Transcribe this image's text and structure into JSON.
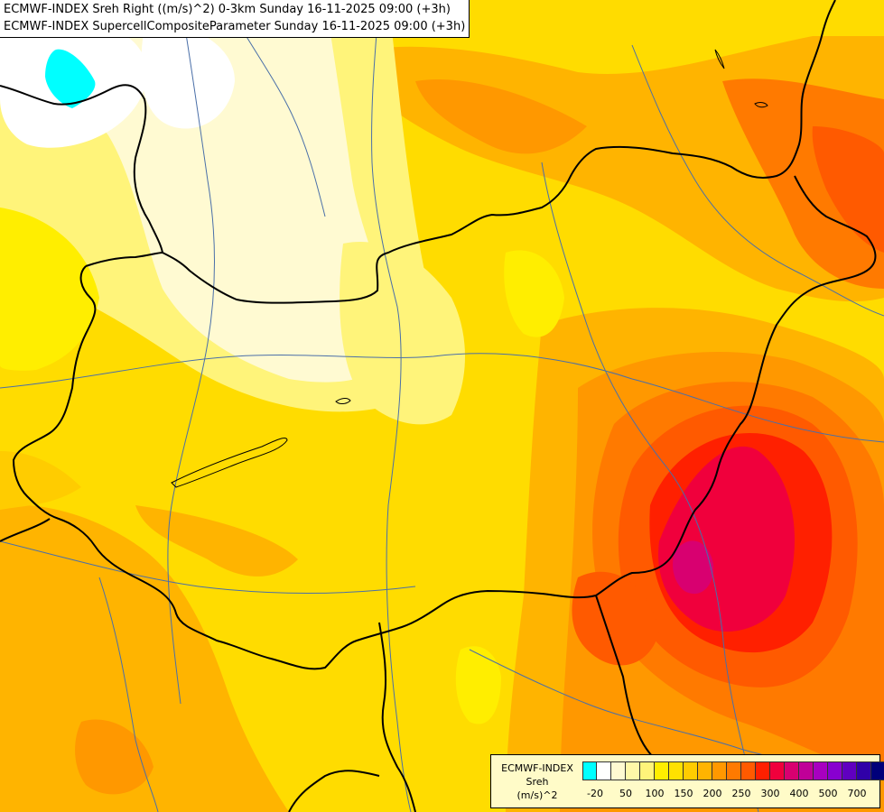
{
  "header": {
    "line1": "ECMWF-INDEX Sreh Right ((m/s)^2) 0-3km Sunday 16-11-2025 09:00 (+3h)",
    "line2": "ECMWF-INDEX SupercellCompositeParameter Sunday 16-11-2025 09:00 (+3h)"
  },
  "legend": {
    "source": "ECMWF-INDEX",
    "parameter": "Sreh",
    "unit": "(m/s)^2",
    "colors": [
      "#00ffff",
      "#ffffff",
      "#fffad2",
      "#fff8a8",
      "#fff47a",
      "#ffee00",
      "#ffe100",
      "#ffcc00",
      "#ffb400",
      "#ff9800",
      "#ff7a00",
      "#ff5a00",
      "#ff2000",
      "#f0003c",
      "#d80070",
      "#c00098",
      "#a800c0",
      "#8800d0",
      "#6000c0",
      "#3000a8",
      "#00007a"
    ],
    "tick_labels": [
      "-20",
      "50",
      "100",
      "150",
      "200",
      "250",
      "300",
      "400",
      "500",
      "700"
    ]
  },
  "palette": {
    "cyan": "#00ffff",
    "white": "#ffffff",
    "pale": "#fffbcc",
    "light_yellow": "#fff59a",
    "yellow": "#ffee00",
    "deep_yellow": "#ffdc00",
    "amber": "#ffcc00",
    "orange_light": "#ffb000",
    "orange": "#ff9400",
    "orange_deep": "#ff7200",
    "red_orange": "#ff4e00",
    "red": "#ff1a00",
    "crimson": "#e8003c",
    "magenta": "#d2007a",
    "purple": "#b800a8",
    "border": "#000000",
    "river": "#4a6fa8"
  }
}
